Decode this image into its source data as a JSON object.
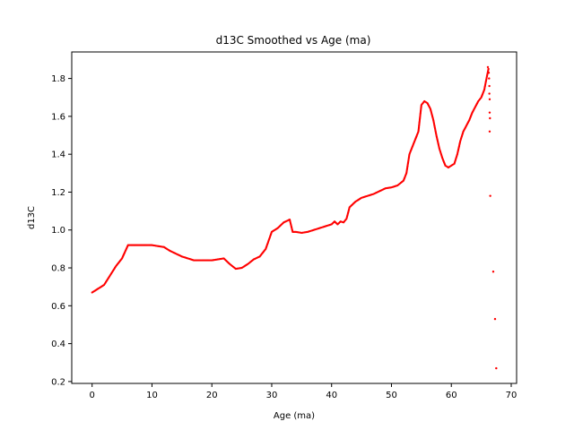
{
  "chart_data": {
    "type": "scatter",
    "title": "d13C Smoothed vs Age (ma)",
    "xlabel": "Age (ma)",
    "ylabel": "d13C",
    "xlim": [
      -3.4,
      70.9
    ],
    "ylim": [
      0.19,
      1.94
    ],
    "xticks": [
      0,
      10,
      20,
      30,
      40,
      50,
      60,
      70
    ],
    "yticks": [
      0.2,
      0.4,
      0.6,
      0.8,
      1.0,
      1.2,
      1.4,
      1.6,
      1.8
    ],
    "xtick_labels": [
      "0",
      "10",
      "20",
      "30",
      "40",
      "50",
      "60",
      "70"
    ],
    "ytick_labels": [
      "0.2",
      "0.4",
      "0.6",
      "0.8",
      "1.0",
      "1.2",
      "1.4",
      "1.6",
      "1.8"
    ],
    "grid": false,
    "marker_color": "#ff0000",
    "series": [
      {
        "curve": [
          [
            0,
            0.67
          ],
          [
            1,
            0.69
          ],
          [
            2,
            0.71
          ],
          [
            3,
            0.76
          ],
          [
            4,
            0.81
          ],
          [
            5,
            0.85
          ],
          [
            6,
            0.92
          ],
          [
            7,
            0.92
          ],
          [
            8,
            0.92
          ],
          [
            9,
            0.92
          ],
          [
            10,
            0.92
          ],
          [
            11,
            0.915
          ],
          [
            12,
            0.91
          ],
          [
            13,
            0.89
          ],
          [
            14,
            0.875
          ],
          [
            15,
            0.86
          ],
          [
            16,
            0.85
          ],
          [
            17,
            0.84
          ],
          [
            18,
            0.84
          ],
          [
            19,
            0.84
          ],
          [
            20,
            0.84
          ],
          [
            21,
            0.845
          ],
          [
            22,
            0.85
          ],
          [
            23,
            0.82
          ],
          [
            24,
            0.795
          ],
          [
            25,
            0.8
          ],
          [
            26,
            0.82
          ],
          [
            27,
            0.845
          ],
          [
            28,
            0.86
          ],
          [
            29,
            0.9
          ],
          [
            30,
            0.99
          ],
          [
            31,
            1.01
          ],
          [
            32,
            1.04
          ],
          [
            33,
            1.055
          ],
          [
            33.5,
            0.99
          ],
          [
            34,
            0.99
          ],
          [
            35,
            0.985
          ],
          [
            36,
            0.99
          ],
          [
            37,
            1.0
          ],
          [
            38,
            1.01
          ],
          [
            39,
            1.02
          ],
          [
            40,
            1.03
          ],
          [
            40.5,
            1.045
          ],
          [
            41,
            1.03
          ],
          [
            41.5,
            1.045
          ],
          [
            42,
            1.04
          ],
          [
            42.5,
            1.06
          ],
          [
            43,
            1.12
          ],
          [
            44,
            1.15
          ],
          [
            45,
            1.17
          ],
          [
            46,
            1.18
          ],
          [
            47,
            1.19
          ],
          [
            48,
            1.205
          ],
          [
            49,
            1.22
          ],
          [
            50,
            1.225
          ],
          [
            51,
            1.235
          ],
          [
            52,
            1.26
          ],
          [
            52.5,
            1.3
          ],
          [
            53,
            1.4
          ],
          [
            54,
            1.48
          ],
          [
            54.5,
            1.52
          ],
          [
            55,
            1.66
          ],
          [
            55.5,
            1.68
          ],
          [
            56,
            1.67
          ],
          [
            56.5,
            1.64
          ],
          [
            57,
            1.58
          ],
          [
            57.5,
            1.5
          ],
          [
            58,
            1.43
          ],
          [
            58.5,
            1.38
          ],
          [
            59,
            1.34
          ],
          [
            59.5,
            1.33
          ],
          [
            60,
            1.34
          ],
          [
            60.5,
            1.35
          ],
          [
            61,
            1.4
          ],
          [
            61.5,
            1.47
          ],
          [
            62,
            1.52
          ],
          [
            62.5,
            1.55
          ],
          [
            63,
            1.58
          ],
          [
            63.5,
            1.62
          ],
          [
            64,
            1.65
          ],
          [
            64.5,
            1.68
          ],
          [
            65,
            1.7
          ],
          [
            65.5,
            1.74
          ],
          [
            66,
            1.82
          ],
          [
            66.2,
            1.85
          ]
        ],
        "outliers": [
          [
            66.1,
            1.86
          ],
          [
            66.2,
            1.85
          ],
          [
            66.25,
            1.83
          ],
          [
            66.3,
            1.8
          ],
          [
            66.35,
            1.76
          ],
          [
            66.35,
            1.72
          ],
          [
            66.4,
            1.69
          ],
          [
            66.4,
            1.62
          ],
          [
            66.45,
            1.59
          ],
          [
            66.4,
            1.52
          ],
          [
            66.5,
            1.18
          ],
          [
            67.0,
            0.78
          ],
          [
            67.3,
            0.53
          ],
          [
            67.5,
            0.27
          ]
        ]
      }
    ]
  }
}
